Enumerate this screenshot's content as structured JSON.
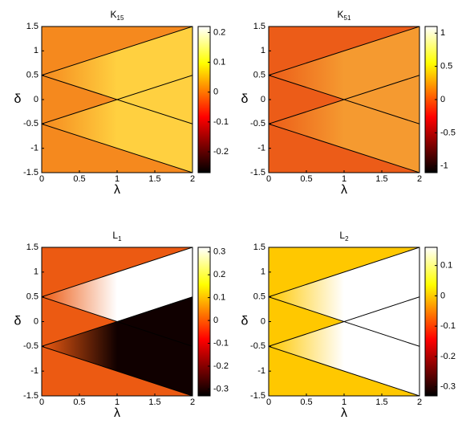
{
  "chart_data": [
    {
      "type": "heatmap",
      "title": "K",
      "title_sub": "15",
      "xlabel": "λ",
      "ylabel": "δ",
      "xlim": [
        0,
        2
      ],
      "xticks": [
        0,
        0.5,
        1,
        1.5,
        2
      ],
      "ylim": [
        -1.5,
        1.5
      ],
      "yticks": [
        -1.5,
        -1,
        -0.5,
        0,
        0.5,
        1,
        1.5
      ],
      "clim": [
        -0.27,
        0.22
      ],
      "cticks": [
        -0.2,
        -0.1,
        0,
        0.1,
        0.2
      ],
      "background": "#f5891e",
      "upper_wedge_color": "#ffd040",
      "lower_wedge_color": "#ffd040",
      "lines": [
        {
          "color": "#000000",
          "x": [
            0,
            2
          ],
          "y": [
            0.5,
            1.5
          ]
        },
        {
          "color": "#000000",
          "x": [
            0,
            2
          ],
          "y": [
            0.5,
            -0.5
          ]
        },
        {
          "color": "#000000",
          "x": [
            0,
            2
          ],
          "y": [
            -0.5,
            0.5
          ]
        },
        {
          "color": "#000000",
          "x": [
            0,
            2
          ],
          "y": [
            -0.5,
            -1.5
          ]
        }
      ]
    },
    {
      "type": "heatmap",
      "title": "K",
      "title_sub": "51",
      "xlabel": "λ",
      "ylabel": "δ",
      "xlim": [
        0,
        2
      ],
      "xticks": [
        0,
        0.5,
        1,
        1.5,
        2
      ],
      "ylim": [
        -1.5,
        1.5
      ],
      "yticks": [
        -1.5,
        -1,
        -0.5,
        0,
        0.5,
        1,
        1.5
      ],
      "clim": [
        -1.1,
        1.1
      ],
      "cticks": [
        -1,
        -0.5,
        0,
        0.5,
        1
      ],
      "background": "#ec5c18",
      "upper_wedge_color": "#f59a30",
      "lower_wedge_color": "#f59a30",
      "lines": [
        {
          "color": "#000000",
          "x": [
            0,
            2
          ],
          "y": [
            0.5,
            1.5
          ]
        },
        {
          "color": "#000000",
          "x": [
            0,
            2
          ],
          "y": [
            0.5,
            -0.5
          ]
        },
        {
          "color": "#000000",
          "x": [
            0,
            2
          ],
          "y": [
            -0.5,
            0.5
          ]
        },
        {
          "color": "#000000",
          "x": [
            0,
            2
          ],
          "y": [
            -0.5,
            -1.5
          ]
        }
      ]
    },
    {
      "type": "heatmap",
      "title": "L",
      "title_sub": "1",
      "xlabel": "λ",
      "ylabel": "δ",
      "xlim": [
        0,
        2
      ],
      "xticks": [
        0,
        0.5,
        1,
        1.5,
        2
      ],
      "ylim": [
        -1.5,
        1.5
      ],
      "yticks": [
        -1.5,
        -1,
        -0.5,
        0,
        0.5,
        1,
        1.5
      ],
      "clim": [
        -0.33,
        0.32
      ],
      "cticks": [
        -0.3,
        -0.2,
        -0.1,
        0,
        0.1,
        0.2,
        0.3
      ],
      "background": "#ec5a12",
      "upper_wedge_color": "#ffffff",
      "lower_wedge_color": "#100000",
      "lines": [
        {
          "color": "#000000",
          "x": [
            0,
            2
          ],
          "y": [
            0.5,
            1.5
          ]
        },
        {
          "color": "#000000",
          "x": [
            0,
            2
          ],
          "y": [
            0.5,
            -0.5
          ]
        },
        {
          "color": "#000000",
          "x": [
            0,
            2
          ],
          "y": [
            -0.5,
            0.5
          ]
        },
        {
          "color": "#000000",
          "x": [
            0,
            2
          ],
          "y": [
            -0.5,
            -1.5
          ]
        }
      ]
    },
    {
      "type": "heatmap",
      "title": "L",
      "title_sub": "2",
      "xlabel": "λ",
      "ylabel": "δ",
      "xlim": [
        0,
        2
      ],
      "xticks": [
        0,
        0.5,
        1,
        1.5,
        2
      ],
      "ylim": [
        -1.5,
        1.5
      ],
      "yticks": [
        -1.5,
        -1,
        -0.5,
        0,
        0.5,
        1,
        1.5
      ],
      "clim": [
        -0.33,
        0.16
      ],
      "cticks": [
        -0.3,
        -0.2,
        -0.1,
        0,
        0.1
      ],
      "background": "#ffc800",
      "upper_wedge_color": "#ffffff",
      "lower_wedge_color": "#ffffff",
      "lines": [
        {
          "color": "#000000",
          "x": [
            0,
            2
          ],
          "y": [
            0.5,
            1.5
          ]
        },
        {
          "color": "#000000",
          "x": [
            0,
            2
          ],
          "y": [
            0.5,
            -0.5
          ]
        },
        {
          "color": "#000000",
          "x": [
            0,
            2
          ],
          "y": [
            -0.5,
            0.5
          ]
        },
        {
          "color": "#000000",
          "x": [
            0,
            2
          ],
          "y": [
            -0.5,
            -1.5
          ]
        }
      ]
    }
  ]
}
